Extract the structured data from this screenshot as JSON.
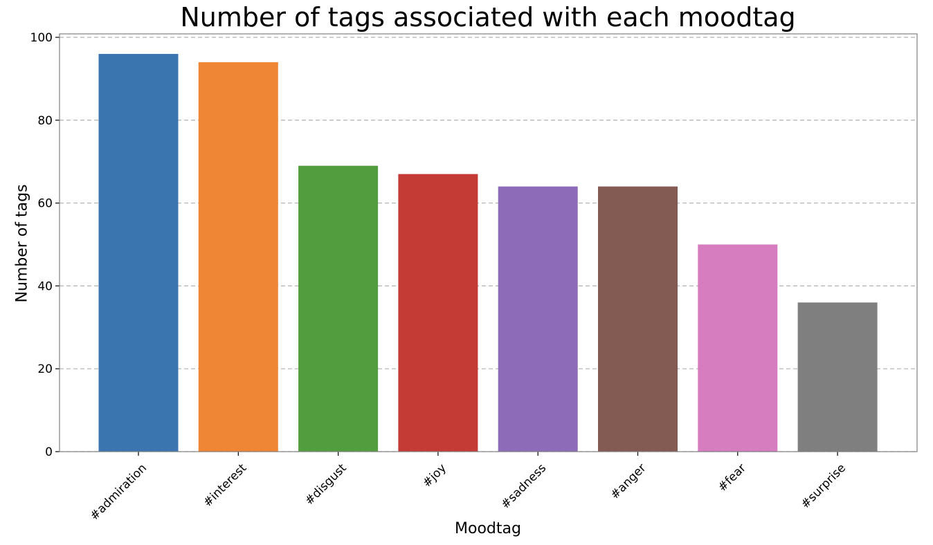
{
  "chart_data": {
    "type": "bar",
    "title": "Number of tags associated with each moodtag",
    "xlabel": "Moodtag",
    "ylabel": "Number of tags",
    "categories": [
      "#admiration",
      "#interest",
      "#disgust",
      "#joy",
      "#sadness",
      "#anger",
      "#fear",
      "#surprise"
    ],
    "values": [
      96,
      94,
      69,
      67,
      64,
      64,
      50,
      36
    ],
    "colors": [
      "#3a75af",
      "#ef8636",
      "#529e3f",
      "#c43a35",
      "#8d6bb8",
      "#845b53",
      "#d57dbe",
      "#7f7f7f"
    ],
    "ylim": [
      0,
      100
    ],
    "yticks": [
      0,
      20,
      40,
      60,
      80,
      100
    ],
    "grid": "horizontal dashed",
    "legend": "none"
  }
}
